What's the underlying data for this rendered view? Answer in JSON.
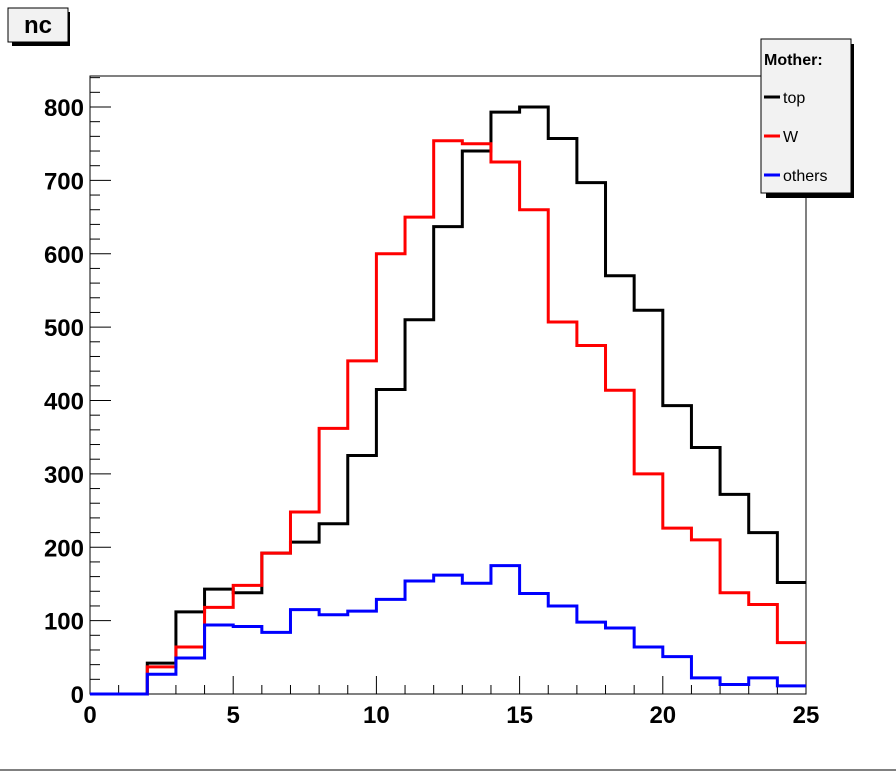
{
  "chart_data": {
    "type": "line",
    "step": true,
    "title": "nc",
    "xlabel": "",
    "ylabel": "",
    "xlim": [
      0,
      25
    ],
    "ylim": [
      0,
      840
    ],
    "bin_edges": [
      0,
      1,
      2,
      3,
      4,
      5,
      6,
      7,
      8,
      9,
      10,
      11,
      12,
      13,
      14,
      15,
      16,
      17,
      18,
      19,
      20,
      21,
      22,
      23,
      24,
      25
    ],
    "x_ticks": [
      "0",
      "5",
      "10",
      "15",
      "20",
      "25"
    ],
    "y_ticks": [
      "0",
      "100",
      "200",
      "300",
      "400",
      "500",
      "600",
      "700",
      "800"
    ],
    "grid": false,
    "legend": {
      "title": "Mother:",
      "placement": "top-right"
    },
    "series": [
      {
        "name": "top",
        "color": "#000000",
        "values": [
          0,
          0,
          42,
          112,
          143,
          138,
          192,
          207,
          232,
          325,
          415,
          510,
          637,
          740,
          793,
          800,
          757,
          697,
          570,
          523,
          393,
          336,
          272,
          220,
          152
        ]
      },
      {
        "name": "W",
        "color": "#ff0000",
        "values": [
          0,
          0,
          37,
          64,
          118,
          148,
          192,
          248,
          362,
          454,
          600,
          650,
          754,
          750,
          725,
          660,
          507,
          475,
          414,
          300,
          226,
          210,
          138,
          122,
          70
        ]
      },
      {
        "name": "others",
        "color": "#0000ff",
        "values": [
          0,
          0,
          27,
          49,
          94,
          92,
          84,
          115,
          108,
          113,
          129,
          154,
          162,
          151,
          175,
          137,
          120,
          98,
          90,
          64,
          51,
          22,
          13,
          22,
          11
        ]
      }
    ]
  }
}
